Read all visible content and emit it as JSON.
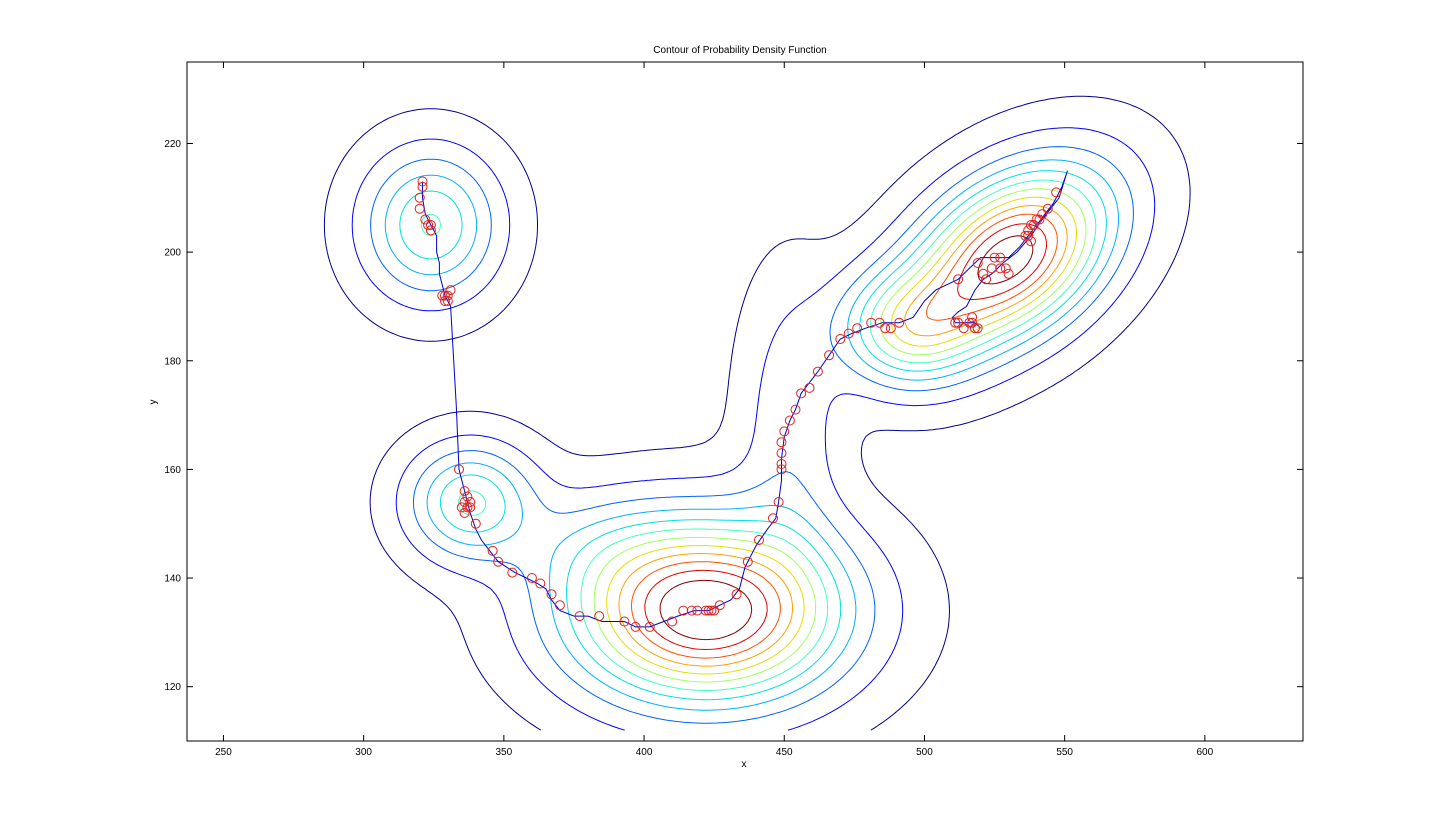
{
  "chart_data": {
    "type": "contour",
    "title": "Contour of Probability Density Function",
    "xlabel": "x",
    "ylabel": "y",
    "xlim": [
      237,
      635
    ],
    "ylim": [
      110,
      235
    ],
    "xticks": [
      250,
      300,
      350,
      400,
      450,
      500,
      550,
      600
    ],
    "yticks": [
      120,
      140,
      160,
      180,
      200,
      220
    ],
    "grid": false,
    "legend": "none",
    "colors": {
      "path": "#0000cc",
      "markers": "#dd2222",
      "contour_levels": [
        "#00008f",
        "#0000ff",
        "#0060ff",
        "#00b0ff",
        "#00e0e0",
        "#40ffbf",
        "#a0ff60",
        "#e0e000",
        "#ffa000",
        "#ff5000",
        "#e00000",
        "#800000"
      ]
    },
    "modes": [
      {
        "x": 324,
        "y": 205,
        "sx": 16,
        "sy": 9,
        "rho": 0,
        "w": 0.42
      },
      {
        "x": 338,
        "y": 154,
        "sx": 15,
        "sy": 7,
        "rho": 0,
        "w": 0.42
      },
      {
        "x": 422,
        "y": 134,
        "sx": 32,
        "sy": 11,
        "rho": 0,
        "w": 1.0
      },
      {
        "x": 530,
        "y": 199,
        "sx": 24,
        "sy": 11,
        "rho": 0.4,
        "w": 0.95
      },
      {
        "x": 493,
        "y": 186,
        "sx": 16,
        "sy": 7,
        "rho": 0,
        "w": 0.4
      },
      {
        "x": 452,
        "y": 168,
        "sx": 12,
        "sy": 18,
        "rho": 0,
        "w": 0.14
      },
      {
        "x": 382,
        "y": 146,
        "sx": 20,
        "sy": 7,
        "rho": 0,
        "w": 0.1
      }
    ],
    "contour_levels": [
      0.025,
      0.09,
      0.17,
      0.25,
      0.33,
      0.41,
      0.49,
      0.57,
      0.65,
      0.73,
      0.81,
      0.89
    ],
    "path": [
      [
        321,
        213
      ],
      [
        321,
        210
      ],
      [
        322,
        207
      ],
      [
        324,
        205
      ],
      [
        325,
        204
      ],
      [
        326,
        203
      ],
      [
        326,
        200
      ],
      [
        327,
        198
      ],
      [
        327,
        196
      ],
      [
        328,
        194
      ],
      [
        329,
        192
      ],
      [
        330,
        191
      ],
      [
        331,
        190
      ],
      [
        333,
        172
      ],
      [
        334,
        160
      ],
      [
        336,
        156
      ],
      [
        337,
        154
      ],
      [
        338,
        152
      ],
      [
        340,
        149
      ],
      [
        342,
        147
      ],
      [
        345,
        145
      ],
      [
        348,
        143
      ],
      [
        351,
        142
      ],
      [
        354,
        141
      ],
      [
        358,
        140
      ],
      [
        362,
        139
      ],
      [
        365,
        138
      ],
      [
        367,
        136
      ],
      [
        370,
        134
      ],
      [
        375,
        133
      ],
      [
        380,
        133
      ],
      [
        385,
        132
      ],
      [
        393,
        132
      ],
      [
        397,
        131
      ],
      [
        402,
        131
      ],
      [
        407,
        132
      ],
      [
        412,
        133
      ],
      [
        418,
        134
      ],
      [
        423,
        134
      ],
      [
        427,
        135
      ],
      [
        431,
        136
      ],
      [
        434,
        138
      ],
      [
        436,
        142
      ],
      [
        440,
        146
      ],
      [
        444,
        149
      ],
      [
        447,
        151
      ],
      [
        448,
        154
      ],
      [
        449,
        158
      ],
      [
        449,
        162
      ],
      [
        450,
        166
      ],
      [
        452,
        169
      ],
      [
        454,
        171
      ],
      [
        456,
        174
      ],
      [
        459,
        176
      ],
      [
        462,
        178
      ],
      [
        466,
        181
      ],
      [
        470,
        184
      ],
      [
        474,
        185
      ],
      [
        479,
        186
      ],
      [
        485,
        187
      ],
      [
        491,
        187
      ],
      [
        496,
        188
      ],
      [
        500,
        191
      ],
      [
        504,
        193
      ],
      [
        508,
        194
      ],
      [
        512,
        195
      ],
      [
        516,
        197
      ],
      [
        520,
        199
      ],
      [
        525,
        199
      ],
      [
        530,
        199
      ],
      [
        534,
        201
      ],
      [
        537,
        203
      ],
      [
        540,
        205
      ],
      [
        543,
        207
      ],
      [
        546,
        209
      ],
      [
        549,
        212
      ],
      [
        551,
        215
      ],
      [
        548,
        210
      ],
      [
        545,
        208
      ],
      [
        542,
        206
      ],
      [
        538,
        203
      ],
      [
        533,
        200
      ],
      [
        528,
        198
      ],
      [
        524,
        196
      ],
      [
        521,
        195
      ],
      [
        518,
        193
      ],
      [
        515,
        190
      ],
      [
        512,
        189
      ],
      [
        510,
        188
      ],
      [
        511,
        187
      ],
      [
        515,
        187
      ],
      [
        518,
        187
      ],
      [
        520,
        186
      ]
    ],
    "samples": [
      [
        321,
        213
      ],
      [
        321,
        212
      ],
      [
        320,
        210
      ],
      [
        320,
        208
      ],
      [
        322,
        206
      ],
      [
        323,
        205
      ],
      [
        324,
        204
      ],
      [
        324,
        205
      ],
      [
        328,
        192
      ],
      [
        329,
        192
      ],
      [
        330,
        192
      ],
      [
        331,
        193
      ],
      [
        330,
        191
      ],
      [
        329,
        191
      ],
      [
        334,
        160
      ],
      [
        336,
        156
      ],
      [
        336,
        154
      ],
      [
        337,
        155
      ],
      [
        338,
        154
      ],
      [
        337,
        153
      ],
      [
        335,
        153
      ],
      [
        336,
        152
      ],
      [
        338,
        153
      ],
      [
        340,
        150
      ],
      [
        346,
        145
      ],
      [
        348,
        143
      ],
      [
        353,
        141
      ],
      [
        360,
        140
      ],
      [
        363,
        139
      ],
      [
        367,
        137
      ],
      [
        370,
        135
      ],
      [
        377,
        133
      ],
      [
        384,
        133
      ],
      [
        393,
        132
      ],
      [
        397,
        131
      ],
      [
        402,
        131
      ],
      [
        410,
        132
      ],
      [
        414,
        134
      ],
      [
        417,
        134
      ],
      [
        419,
        134
      ],
      [
        422,
        134
      ],
      [
        423,
        134
      ],
      [
        424,
        134
      ],
      [
        425,
        134
      ],
      [
        427,
        135
      ],
      [
        433,
        137
      ],
      [
        437,
        143
      ],
      [
        441,
        147
      ],
      [
        446,
        151
      ],
      [
        448,
        154
      ],
      [
        449,
        160
      ],
      [
        449,
        161
      ],
      [
        449,
        163
      ],
      [
        449,
        165
      ],
      [
        450,
        167
      ],
      [
        452,
        169
      ],
      [
        454,
        171
      ],
      [
        456,
        174
      ],
      [
        459,
        175
      ],
      [
        462,
        178
      ],
      [
        466,
        181
      ],
      [
        470,
        184
      ],
      [
        473,
        185
      ],
      [
        476,
        186
      ],
      [
        481,
        187
      ],
      [
        484,
        187
      ],
      [
        486,
        186
      ],
      [
        488,
        186
      ],
      [
        491,
        187
      ],
      [
        511,
        187
      ],
      [
        512,
        187
      ],
      [
        514,
        186
      ],
      [
        516,
        187
      ],
      [
        517,
        187
      ],
      [
        518,
        186
      ],
      [
        519,
        186
      ],
      [
        517,
        188
      ],
      [
        512,
        195
      ],
      [
        519,
        198
      ],
      [
        521,
        196
      ],
      [
        522,
        195
      ],
      [
        524,
        197
      ],
      [
        525,
        199
      ],
      [
        527,
        199
      ],
      [
        529,
        197
      ],
      [
        530,
        196
      ],
      [
        527,
        197
      ],
      [
        536,
        203
      ],
      [
        537,
        204
      ],
      [
        537,
        203
      ],
      [
        538,
        202
      ],
      [
        538,
        205
      ],
      [
        539,
        205
      ],
      [
        540,
        206
      ],
      [
        541,
        206
      ],
      [
        542,
        207
      ],
      [
        544,
        208
      ],
      [
        547,
        211
      ]
    ]
  }
}
